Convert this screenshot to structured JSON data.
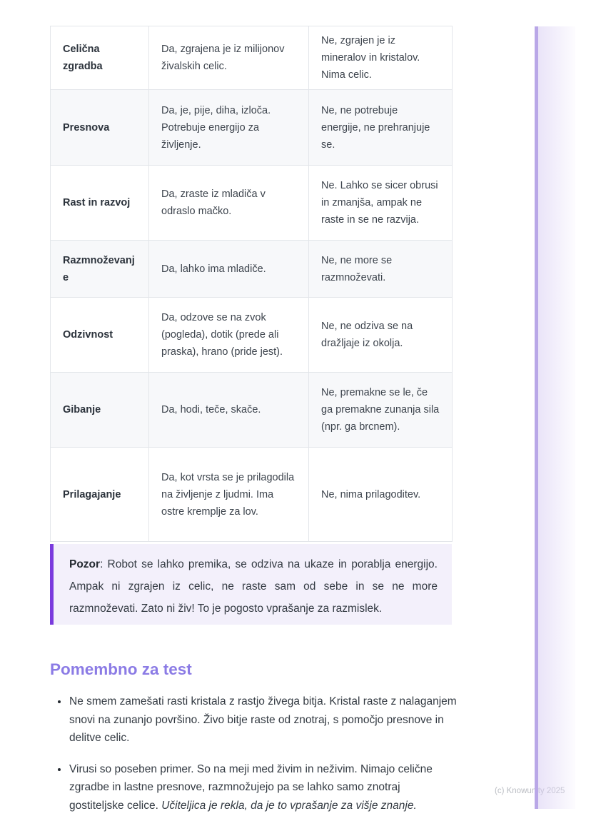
{
  "table": {
    "rows": [
      {
        "label": "Celična zgradba",
        "living": "Da, zgrajena je iz milijonov živalskih celic.",
        "nonliving": "Ne, zgrajen je iz mineralov in kristalov. Nima celic."
      },
      {
        "label": "Presnova",
        "living": "Da, je, pije, diha, izloča. Potrebuje energijo za življenje.",
        "nonliving": "Ne, ne potrebuje energije, ne prehranjuje se."
      },
      {
        "label": "Rast in razvoj",
        "living": "Da, zraste iz mladiča v odraslo mačko.",
        "nonliving": "Ne. Lahko se sicer obrusi in zmanjša, ampak ne raste in se ne razvija."
      },
      {
        "label": "Razmnoževanje",
        "living": "Da, lahko ima mladiče.",
        "nonliving": "Ne, ne more se razmnoževati."
      },
      {
        "label": "Odzivnost",
        "living": "Da, odzove se na zvok (pogleda), dotik (prede ali praska), hrano (pride jest).",
        "nonliving": "Ne, ne odziva se na dražljaje iz okolja."
      },
      {
        "label": "Gibanje",
        "living": "Da, hodi, teče, skače.",
        "nonliving": "Ne, premakne se le, če ga premakne zunanja sila (npr. ga brcnem)."
      },
      {
        "label": "Prilagajanje",
        "living": "Da, kot vrsta se je prilagodila na življenje z ljudmi. Ima ostre kremplje za lov.",
        "nonliving": "Ne, nima prilagoditev."
      }
    ]
  },
  "callout": {
    "label": "Pozor",
    "text": ": Robot se lahko premika, se odziva na ukaze in porablja energijo. Ampak ni zgrajen iz celic, ne raste sam od sebe in se ne more razmnoževati. Zato ni živ! To je pogosto vprašanje za razmislek."
  },
  "section": {
    "heading": "Pomembno za test",
    "bullets": [
      {
        "text": "Ne smem zamešati rasti kristala z rastjo živega bitja. Kristal raste z nalaganjem snovi na zunanjo površino. Živo bitje raste od znotraj, s pomočjo presnove in delitve celic.",
        "italic": ""
      },
      {
        "text": "Virusi so poseben primer. So na meji med živim in neživim. Nimajo celične zgradbe in lastne presnove, razmnožujejo pa se lahko samo znotraj gostiteljske celice. ",
        "italic": "Učiteljica je rekla, da je to vprašanje za višje znanje."
      }
    ]
  },
  "footer": {
    "watermark": "(c) Knowunity 2025"
  },
  "colors": {
    "accent_purple": "#7a3bdd",
    "heading_purple": "#8b7be5",
    "callout_bg": "#f3f0fb",
    "edge_strip_purple": "#b9a7e7",
    "table_border": "#e3e6ea",
    "row_stripe": "#f7f8fa"
  }
}
